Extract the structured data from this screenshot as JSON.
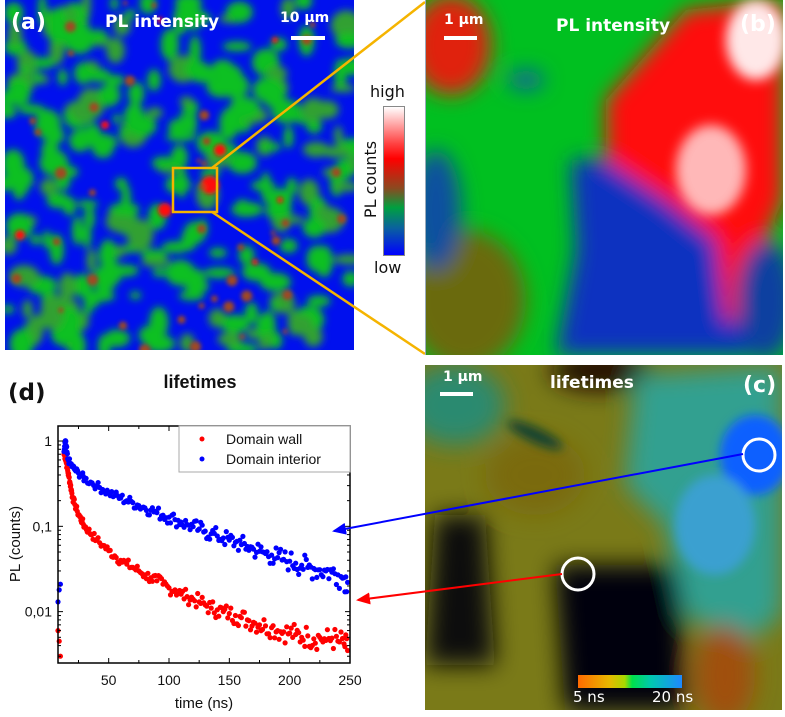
{
  "panels": {
    "a": {
      "label": "(a)",
      "title": "PL intensity",
      "scale_bar": "10 µm"
    },
    "b": {
      "label": "(b)",
      "title": "PL intensity",
      "scale_bar": "1 µm"
    },
    "c": {
      "label": "(c)",
      "title": "lifetimes",
      "scale_bar": "1 µm",
      "colorbar": {
        "min_label": "5 ns",
        "max_label": "20 ns",
        "colors": [
          "#ff6a00",
          "#e8b800",
          "#a8d800",
          "#00e04a",
          "#00c8b0",
          "#1e88ff"
        ]
      }
    },
    "d": {
      "label": "(d)"
    }
  },
  "pl_colorbar": {
    "high_label": "high",
    "low_label": "low",
    "axis_label": "PL counts",
    "colors": [
      "#ffffff",
      "#ff6060",
      "#ff0000",
      "#a03020",
      "#00a040",
      "#1040c0",
      "#0000ff"
    ]
  },
  "colors": {
    "zoom_box": "#f5b400",
    "wall": "#ff0000",
    "interior": "#0000ff",
    "marker_circle": "#ffffff"
  },
  "chart_data": {
    "type": "scatter",
    "title": "lifetimes",
    "xlabel": "time (ns)",
    "ylabel": "PL (counts)",
    "xlim": [
      8,
      250
    ],
    "ylim": [
      0.0025,
      1.5
    ],
    "yscale": "log",
    "xticks": [
      50,
      100,
      150,
      200,
      250
    ],
    "xtick_labels": [
      "50",
      "100",
      "150",
      "200",
      "250"
    ],
    "yticks": [
      1,
      0.1,
      0.01
    ],
    "ytick_labels": [
      "1",
      "0,1",
      "0,01"
    ],
    "legend": {
      "position": "top-right",
      "entries": [
        "Domain wall",
        "Domain interior"
      ]
    },
    "series": [
      {
        "name": "Domain wall",
        "color": "#ff0000",
        "x": [
          8,
          9,
          10,
          13,
          14,
          15,
          16,
          17,
          18,
          19,
          20,
          22,
          24,
          26,
          28,
          30,
          33,
          36,
          40,
          45,
          50,
          55,
          60,
          65,
          70,
          75,
          80,
          85,
          90,
          95,
          100,
          105,
          110,
          115,
          120,
          125,
          130,
          135,
          140,
          145,
          150,
          155,
          160,
          165,
          170,
          175,
          180,
          185,
          190,
          195,
          200,
          205,
          210,
          215,
          220,
          225,
          230,
          235,
          240,
          245,
          248
        ],
        "y": [
          0.006,
          0.0045,
          0.003,
          0.7,
          0.65,
          0.55,
          0.45,
          0.38,
          0.32,
          0.27,
          0.22,
          0.18,
          0.15,
          0.13,
          0.115,
          0.1,
          0.09,
          0.08,
          0.07,
          0.06,
          0.052,
          0.045,
          0.04,
          0.036,
          0.033,
          0.03,
          0.027,
          0.025,
          0.023,
          0.021,
          0.019,
          0.018,
          0.016,
          0.015,
          0.014,
          0.013,
          0.012,
          0.011,
          0.0105,
          0.01,
          0.0095,
          0.009,
          0.0085,
          0.008,
          0.0075,
          0.007,
          0.0068,
          0.0065,
          0.006,
          0.0058,
          0.0056,
          0.0054,
          0.005,
          0.0052,
          0.0048,
          0.005,
          0.0046,
          0.0049,
          0.0045,
          0.0042,
          0.0035
        ]
      },
      {
        "name": "Domain interior",
        "color": "#0000ff",
        "x": [
          8,
          9,
          10,
          13,
          14,
          15,
          16,
          18,
          20,
          22,
          25,
          28,
          30,
          35,
          40,
          45,
          50,
          55,
          60,
          65,
          70,
          75,
          80,
          85,
          90,
          95,
          100,
          105,
          110,
          115,
          120,
          125,
          130,
          135,
          140,
          145,
          150,
          155,
          160,
          165,
          170,
          175,
          180,
          185,
          190,
          195,
          200,
          205,
          210,
          215,
          220,
          225,
          230,
          235,
          240,
          245,
          248
        ],
        "y": [
          0.013,
          0.018,
          0.021,
          0.75,
          1.0,
          0.85,
          0.62,
          0.55,
          0.5,
          0.46,
          0.42,
          0.39,
          0.36,
          0.33,
          0.3,
          0.27,
          0.25,
          0.23,
          0.215,
          0.2,
          0.19,
          0.175,
          0.165,
          0.155,
          0.145,
          0.135,
          0.128,
          0.12,
          0.112,
          0.105,
          0.099,
          0.093,
          0.088,
          0.082,
          0.077,
          0.073,
          0.069,
          0.065,
          0.061,
          0.058,
          0.054,
          0.051,
          0.048,
          0.046,
          0.043,
          0.041,
          0.039,
          0.037,
          0.035,
          0.033,
          0.032,
          0.031,
          0.03,
          0.029,
          0.027,
          0.025,
          0.022
        ]
      }
    ]
  }
}
